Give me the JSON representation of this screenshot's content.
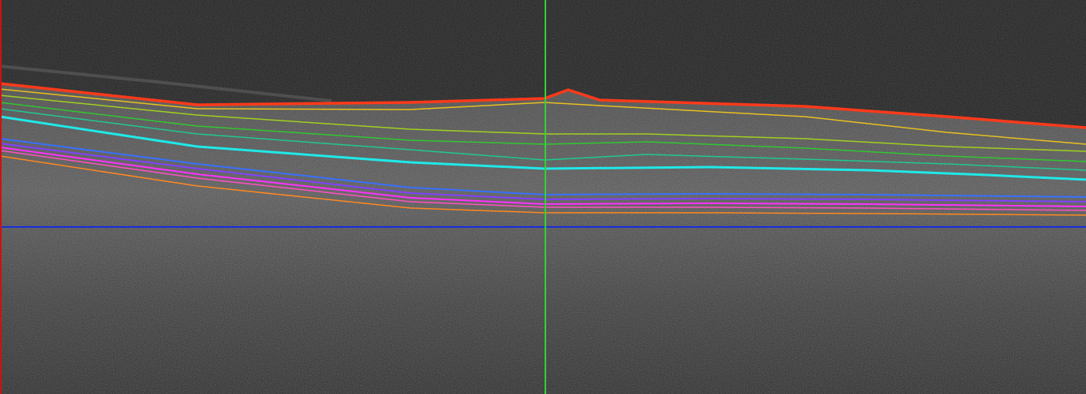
{
  "scan": {
    "background_color": "#1c1c1c",
    "tissue_color": "#5a5a5a",
    "left_edge_color": "#d01010"
  },
  "markers": {
    "vertical_cursor_color": "#32d232",
    "horizontal_reference_color": "#1a2cd8"
  },
  "layer_boundaries": [
    {
      "id": "ilm",
      "color": "#ff3a1a"
    },
    {
      "id": "rnfl-gcl",
      "color": "#e8c020"
    },
    {
      "id": "gcl-ipl",
      "color": "#a0d020"
    },
    {
      "id": "ipl-inl",
      "color": "#30c830"
    },
    {
      "id": "inl-opl",
      "color": "#20c890"
    },
    {
      "id": "opl-onl",
      "color": "#20e8e8"
    },
    {
      "id": "elm",
      "color": "#3870ff"
    },
    {
      "id": "is-os",
      "color": "#8040ff"
    },
    {
      "id": "os-rpe",
      "color": "#ff30ff"
    },
    {
      "id": "rpe-inner",
      "color": "#ff50c0"
    },
    {
      "id": "rpe-bruch",
      "color": "#ff8820"
    }
  ]
}
